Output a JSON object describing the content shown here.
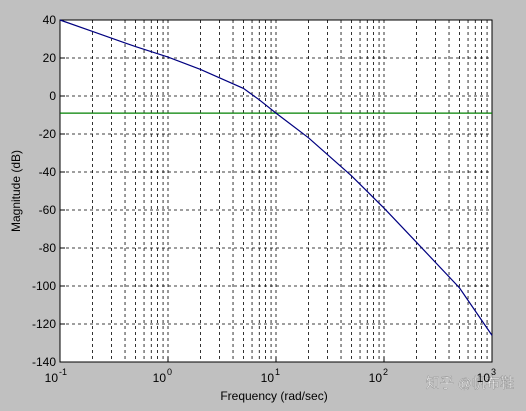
{
  "chart_data": {
    "type": "line",
    "xlabel": "Frequency (rad/sec)",
    "ylabel": "Magnitude (dB)",
    "watermark": "知乎 @帆布鞋",
    "log_x": true,
    "grid": true,
    "x": [
      0.1,
      0.2,
      0.5,
      1,
      2,
      5,
      7,
      10,
      20,
      50,
      100,
      200,
      500,
      1000
    ],
    "series": [
      {
        "name": "magnitude",
        "color": "#000080",
        "values": [
          40,
          34,
          26,
          20.5,
          14,
          4,
          -2,
          -9,
          -22,
          -42,
          -59,
          -77,
          -101,
          -126
        ]
      }
    ],
    "hline": -9,
    "hline_color": "#008000",
    "xlim": [
      0.1,
      1000
    ],
    "ylim": [
      -140,
      40
    ],
    "xticks": [
      {
        "value": 0.1,
        "label": "10",
        "exponent": "-1"
      },
      {
        "value": 1,
        "label": "10",
        "exponent": "0"
      },
      {
        "value": 10,
        "label": "10",
        "exponent": "1"
      },
      {
        "value": 100,
        "label": "10",
        "exponent": "2"
      },
      {
        "value": 1000,
        "label": "10",
        "exponent": "3"
      }
    ],
    "x_minor_ticks": [
      0.2,
      0.3,
      0.4,
      0.5,
      0.6,
      0.7,
      0.8,
      0.9,
      2,
      3,
      4,
      5,
      6,
      7,
      8,
      9,
      20,
      30,
      40,
      50,
      60,
      70,
      80,
      90,
      200,
      300,
      400,
      500,
      600,
      700,
      800,
      900
    ],
    "yticks": [
      40,
      20,
      0,
      -20,
      -40,
      -60,
      -80,
      -100,
      -120,
      -140
    ]
  }
}
